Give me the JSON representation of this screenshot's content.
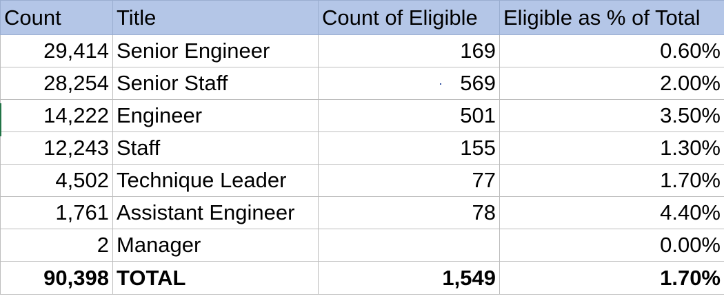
{
  "table": {
    "headers": [
      "Count",
      "Title",
      "Count of Eligible",
      "Eligible as % of Total"
    ],
    "rows": [
      {
        "count": "29,414",
        "title": "Senior Engineer",
        "eligible": "169",
        "pct": "0.60%"
      },
      {
        "count": "28,254",
        "title": "Senior Staff",
        "eligible": "569",
        "pct": "2.00%"
      },
      {
        "count": "14,222",
        "title": "Engineer",
        "eligible": "501",
        "pct": "3.50%"
      },
      {
        "count": "12,243",
        "title": "Staff",
        "eligible": "155",
        "pct": "1.30%"
      },
      {
        "count": "4,502",
        "title": "Technique Leader",
        "eligible": "77",
        "pct": "1.70%"
      },
      {
        "count": "1,761",
        "title": "Assistant Engineer",
        "eligible": "78",
        "pct": "4.40%"
      },
      {
        "count": "2",
        "title": "Manager",
        "eligible": "",
        "pct": "0.00%"
      }
    ],
    "total": {
      "count": "90,398",
      "title": "TOTAL",
      "eligible": "1,549",
      "pct": "1.70%"
    }
  },
  "colors": {
    "header_fill": "#b4c6e7",
    "gridline": "#bdbdbd"
  }
}
